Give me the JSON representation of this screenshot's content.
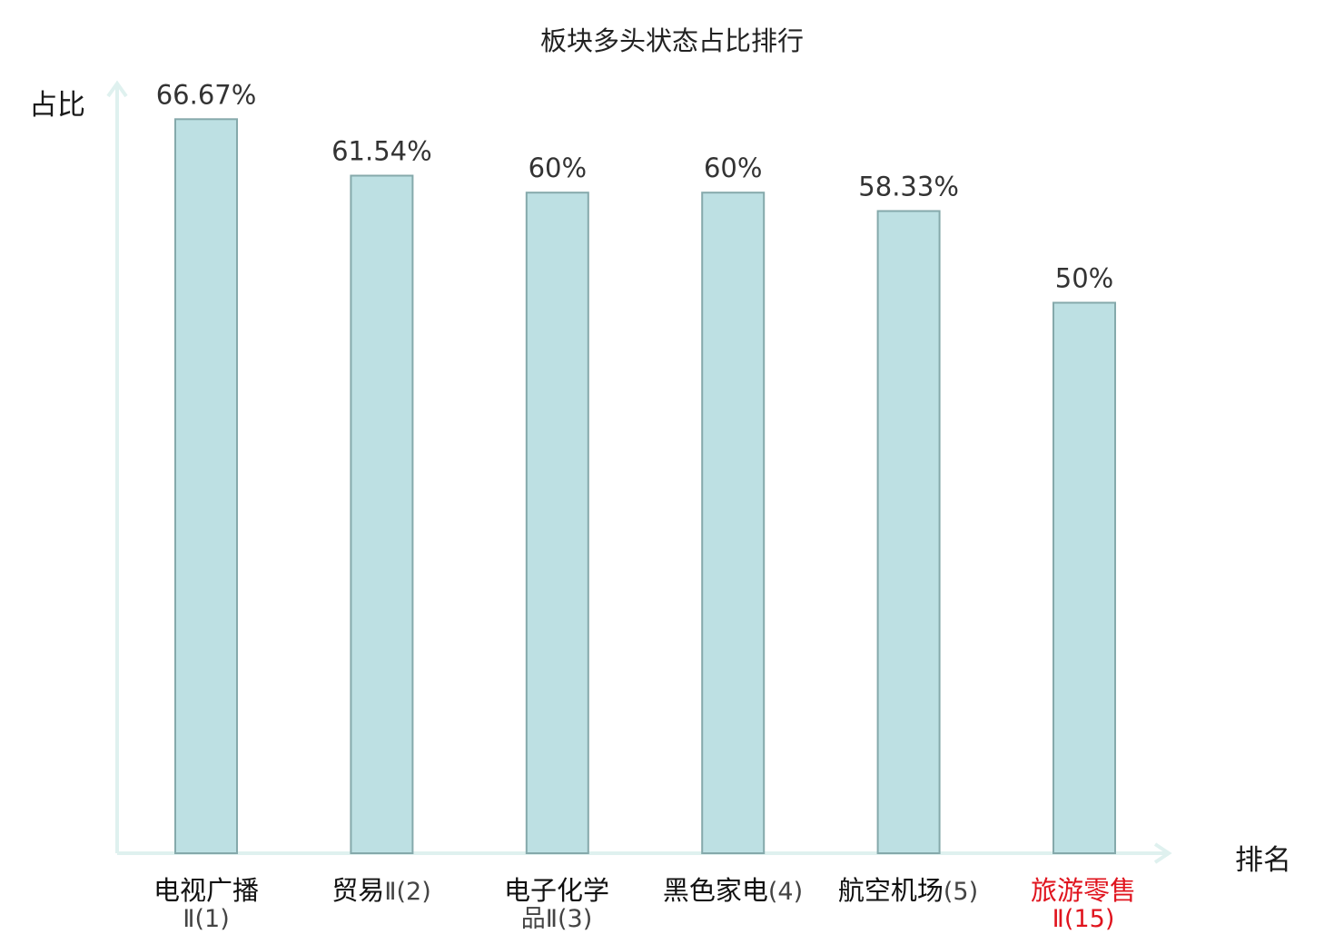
{
  "title": "板块多头状态占比排行",
  "colors": {
    "bar_fill": "#bde0e3",
    "bar_stroke": "#85a9ab",
    "axis": "#dff1ef",
    "value_text": "#333333",
    "highlight": "#e0141e"
  },
  "chart_data": {
    "type": "bar",
    "title": "板块多头状态占比排行",
    "xlabel": "排名",
    "ylabel": "占比",
    "ylim": [
      0,
      70
    ],
    "grid": false,
    "categories": [
      "电视广播Ⅱ(1)",
      "贸易Ⅱ(2)",
      "电子化学品Ⅱ(3)",
      "黑色家电(4)",
      "航空机场(5)",
      "旅游零售Ⅱ(15)"
    ],
    "values": [
      66.67,
      61.54,
      60,
      60,
      58.33,
      50
    ],
    "value_labels": [
      "66.67%",
      "61.54%",
      "60%",
      "60%",
      "58.33%",
      "50%"
    ],
    "highlight_index": 5
  },
  "categories": [
    {
      "name": "电视广播",
      "rank": "Ⅱ(1)"
    },
    {
      "name": "贸易",
      "rank": "Ⅱ(2)"
    },
    {
      "name": "电子化学",
      "rank": "品Ⅱ(3)"
    },
    {
      "name": "黑色家电",
      "rank": "(4)"
    },
    {
      "name": "航空机场",
      "rank": "(5)"
    },
    {
      "name": "旅游零售",
      "rank": "Ⅱ(15)"
    }
  ]
}
